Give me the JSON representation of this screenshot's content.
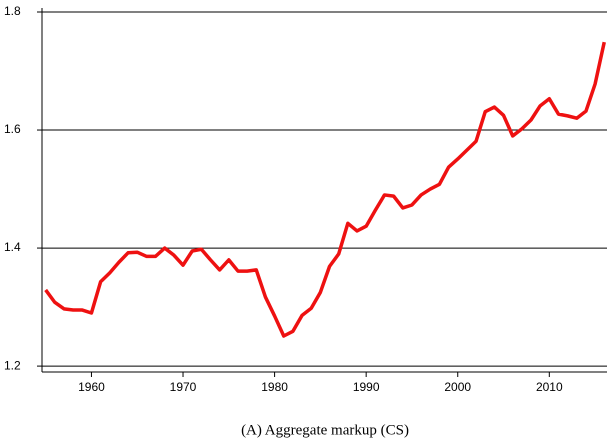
{
  "chart_data": {
    "type": "line",
    "caption": "(A) Aggregate markup (CS)",
    "x": [
      1955,
      1956,
      1957,
      1958,
      1959,
      1960,
      1961,
      1962,
      1963,
      1964,
      1965,
      1966,
      1967,
      1968,
      1969,
      1970,
      1971,
      1972,
      1973,
      1974,
      1975,
      1976,
      1977,
      1978,
      1979,
      1980,
      1981,
      1982,
      1983,
      1984,
      1985,
      1986,
      1987,
      1988,
      1989,
      1990,
      1991,
      1992,
      1993,
      1994,
      1995,
      1996,
      1997,
      1998,
      1999,
      2000,
      2001,
      2002,
      2003,
      2004,
      2005,
      2006,
      2007,
      2008,
      2009,
      2010,
      2011,
      2012,
      2013,
      2014,
      2015,
      2016
    ],
    "series": [
      {
        "color": "#ee1111",
        "values": [
          1.329,
          1.308,
          1.297,
          1.295,
          1.295,
          1.29,
          1.343,
          1.358,
          1.376,
          1.392,
          1.393,
          1.386,
          1.386,
          1.4,
          1.388,
          1.371,
          1.395,
          1.398,
          1.38,
          1.363,
          1.38,
          1.361,
          1.361,
          1.363,
          1.317,
          1.285,
          1.251,
          1.259,
          1.286,
          1.298,
          1.325,
          1.369,
          1.39,
          1.442,
          1.429,
          1.437,
          1.464,
          1.49,
          1.488,
          1.468,
          1.473,
          1.49,
          1.5,
          1.508,
          1.537,
          1.551,
          1.566,
          1.581,
          1.631,
          1.639,
          1.625,
          1.59,
          1.602,
          1.617,
          1.641,
          1.653,
          1.627,
          1.624,
          1.62,
          1.632,
          1.678,
          1.749
        ]
      }
    ],
    "xlim": [
      1954.6,
      2016.3
    ],
    "ylim": [
      1.19,
      1.8
    ],
    "xticks": [
      1960,
      1970,
      1980,
      1990,
      2000,
      2010
    ],
    "yticks": [
      1.2,
      1.4,
      1.6,
      1.8
    ],
    "grid": true
  }
}
